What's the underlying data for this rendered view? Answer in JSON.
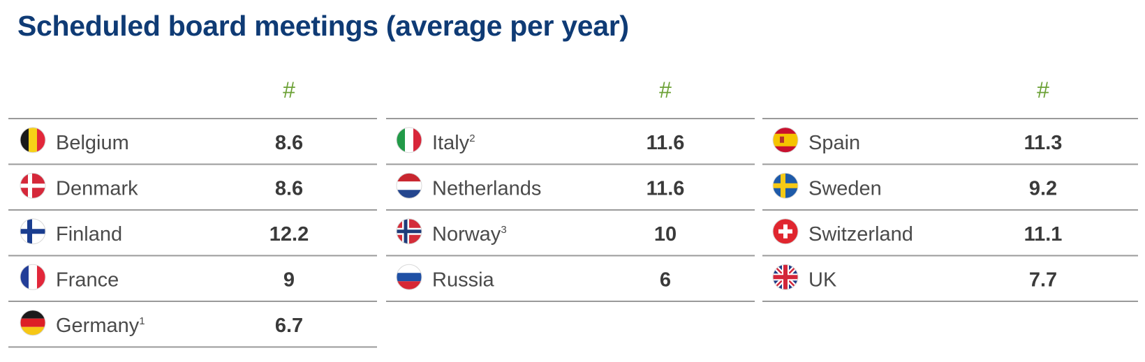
{
  "title": "Scheduled board meetings (average per year)",
  "colors": {
    "title": "#0f3b75",
    "header_hash": "#6ba135",
    "rule": "#9a9a9a",
    "text": "#4a4a4a",
    "value": "#3a3a3a"
  },
  "chart_data": {
    "type": "table",
    "title": "Scheduled board meetings (average per year)",
    "value_header": "#",
    "columns": [
      {
        "header": "#",
        "rows": [
          {
            "country": "Belgium",
            "footnote": "",
            "flag": "belgium-flag-icon",
            "value": "8.6"
          },
          {
            "country": "Denmark",
            "footnote": "",
            "flag": "denmark-flag-icon",
            "value": "8.6"
          },
          {
            "country": "Finland",
            "footnote": "",
            "flag": "finland-flag-icon",
            "value": "12.2"
          },
          {
            "country": "France",
            "footnote": "",
            "flag": "france-flag-icon",
            "value": "9"
          },
          {
            "country": "Germany",
            "footnote": "1",
            "flag": "germany-flag-icon",
            "value": "6.7"
          }
        ]
      },
      {
        "header": "#",
        "rows": [
          {
            "country": "Italy",
            "footnote": "2",
            "flag": "italy-flag-icon",
            "value": "11.6"
          },
          {
            "country": "Netherlands",
            "footnote": "",
            "flag": "netherlands-flag-icon",
            "value": "11.6"
          },
          {
            "country": "Norway",
            "footnote": "3",
            "flag": "norway-flag-icon",
            "value": "10"
          },
          {
            "country": "Russia",
            "footnote": "",
            "flag": "russia-flag-icon",
            "value": "6"
          }
        ]
      },
      {
        "header": "#",
        "rows": [
          {
            "country": "Spain",
            "footnote": "",
            "flag": "spain-flag-icon",
            "value": "11.3"
          },
          {
            "country": "Sweden",
            "footnote": "",
            "flag": "sweden-flag-icon",
            "value": "9.2"
          },
          {
            "country": "Switzerland",
            "footnote": "",
            "flag": "switzerland-flag-icon",
            "value": "11.1"
          },
          {
            "country": "UK",
            "footnote": "",
            "flag": "uk-flag-icon",
            "value": "7.7"
          }
        ]
      }
    ]
  }
}
